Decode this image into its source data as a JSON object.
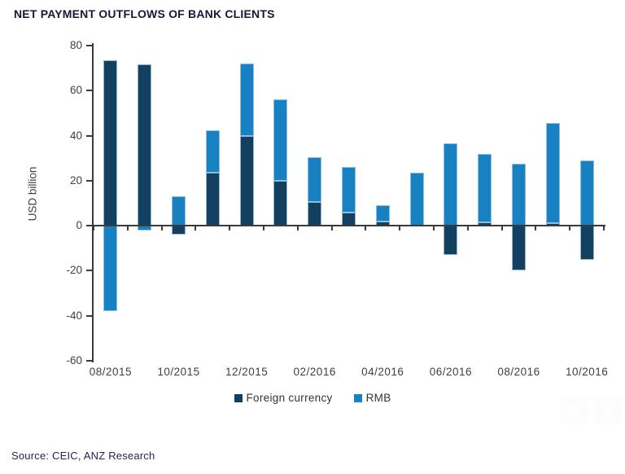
{
  "chart_data": {
    "type": "bar",
    "stacked": true,
    "title": "NET PAYMENT OUTFLOWS OF BANK CLIENTS",
    "ylabel": "USD billion",
    "ylim": [
      -60,
      80
    ],
    "yticks": [
      80,
      60,
      40,
      20,
      0,
      -20,
      -40,
      -60
    ],
    "grid": false,
    "legend_position": "bottom-center",
    "categories": [
      "08/2015",
      "09/2015",
      "10/2015",
      "11/2015",
      "12/2015",
      "01/2016",
      "02/2016",
      "03/2016",
      "04/2016",
      "05/2016",
      "06/2016",
      "07/2016",
      "08/2016",
      "09/2016",
      "10/2016"
    ],
    "x_label_every": 2,
    "x_labels_shown": [
      "08/2015",
      "10/2015",
      "12/2015",
      "02/2016",
      "04/2016",
      "06/2016",
      "08/2016",
      "10/2016"
    ],
    "series": [
      {
        "name": "Foreign currency",
        "color": "#14405f",
        "values": [
          73.5,
          71.5,
          -4,
          23.5,
          40,
          20,
          10.5,
          6,
          2,
          0,
          -13,
          1.5,
          -20,
          1,
          -15
        ]
      },
      {
        "name": "RMB",
        "color": "#1781c2",
        "values": [
          -38,
          -2,
          13,
          19,
          32,
          36,
          20,
          20,
          7,
          23.5,
          36.5,
          30.5,
          27.5,
          44.5,
          29
        ]
      }
    ],
    "source": "Source: CEIC, ANZ Research"
  }
}
